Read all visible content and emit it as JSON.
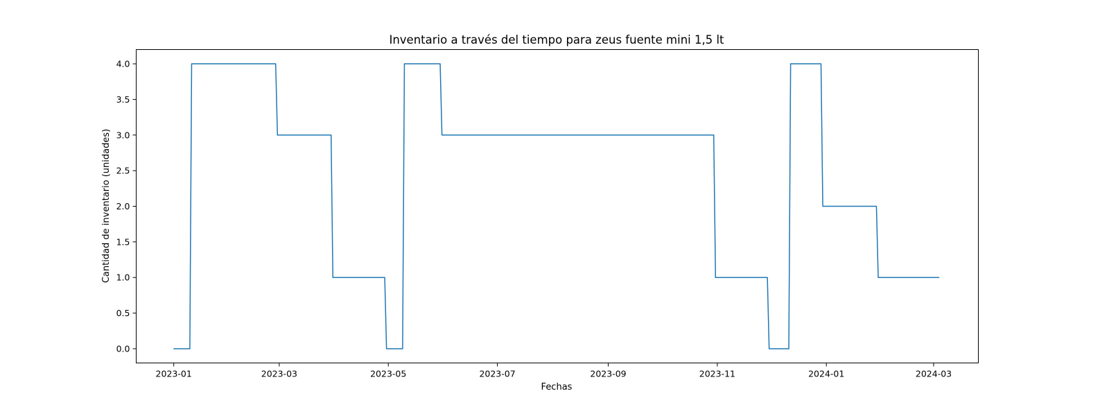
{
  "chart_data": {
    "type": "line",
    "title": "Inventario a través del tiempo para zeus fuente mini 1,5 lt",
    "xlabel": "Fechas",
    "ylabel": "Cantidad de inventario (unidades)",
    "xlim": [
      "2022-12-11",
      "2024-03-26"
    ],
    "ylim": [
      -0.2,
      4.2
    ],
    "x_ticks": [
      "2023-01",
      "2023-03",
      "2023-05",
      "2023-07",
      "2023-09",
      "2023-11",
      "2024-01",
      "2024-03"
    ],
    "y_ticks": [
      "0.0",
      "0.5",
      "1.0",
      "1.5",
      "2.0",
      "2.5",
      "3.0",
      "3.5",
      "4.0"
    ],
    "grid": false,
    "line_color": "#1f77b4",
    "series": [
      {
        "x": [
          "2023-01-01",
          "2023-01-10",
          "2023-01-11",
          "2023-02-27",
          "2023-02-28",
          "2023-03-30",
          "2023-03-31",
          "2023-04-29",
          "2023-04-30",
          "2023-05-09",
          "2023-05-10",
          "2023-05-30",
          "2023-05-31",
          "2023-10-30",
          "2023-10-31",
          "2023-11-29",
          "2023-11-30",
          "2023-12-11",
          "2023-12-12",
          "2023-12-29",
          "2023-12-30",
          "2024-01-29",
          "2024-01-30",
          "2024-03-04"
        ],
        "y": [
          0,
          0,
          4,
          4,
          3,
          3,
          1,
          1,
          0,
          0,
          4,
          4,
          3,
          3,
          1,
          1,
          0,
          0,
          4,
          4,
          2,
          2,
          1,
          1
        ]
      }
    ]
  }
}
